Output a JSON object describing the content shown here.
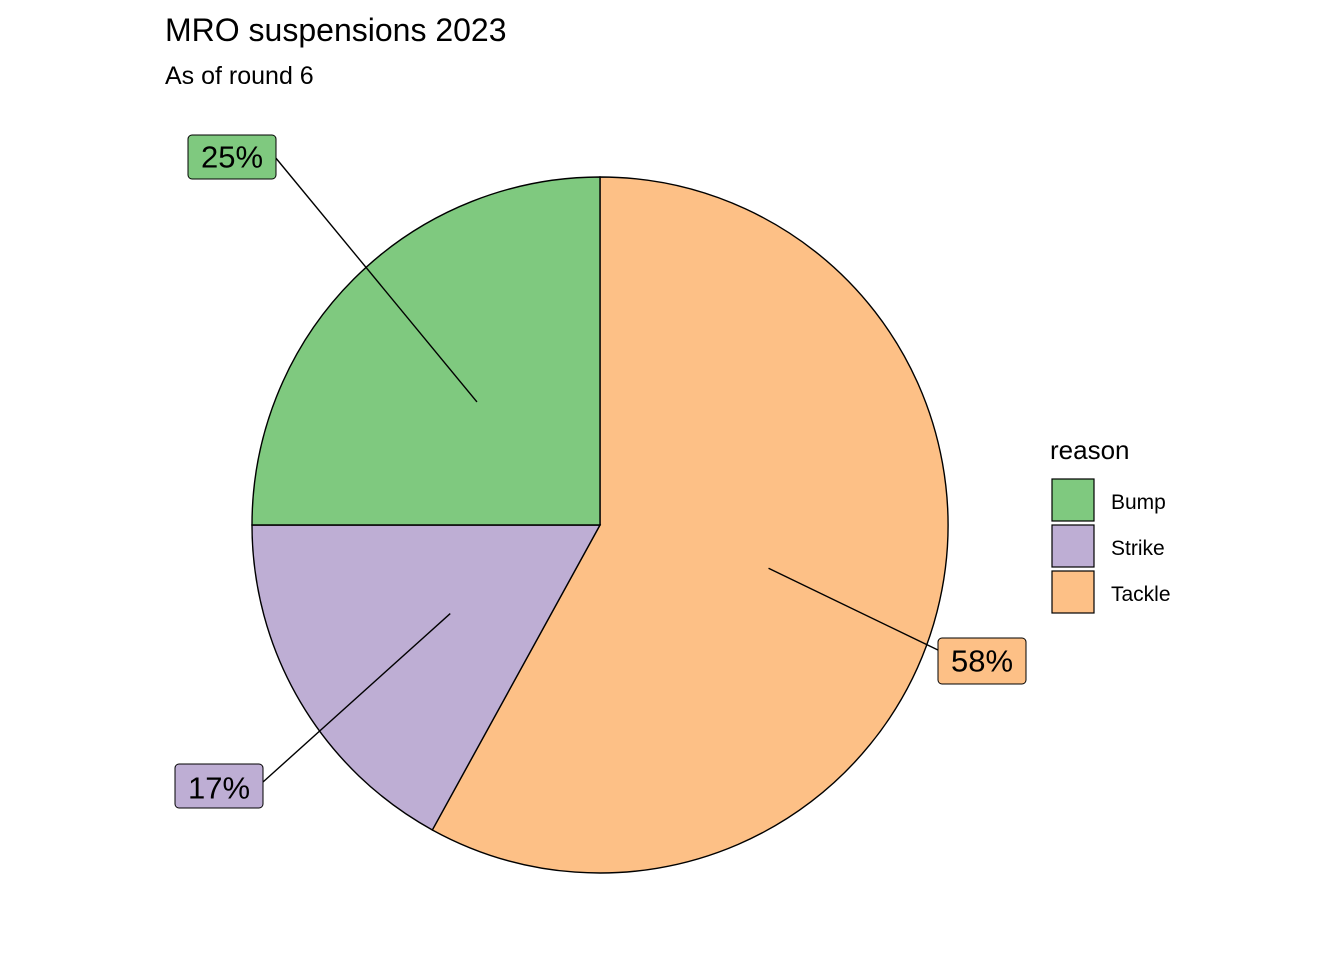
{
  "chart_data": {
    "type": "pie",
    "title": "MRO suspensions 2023",
    "subtitle": "As of round 6",
    "legend": {
      "title": "reason",
      "position": "right"
    },
    "categories": [
      "Bump",
      "Strike",
      "Tackle"
    ],
    "values": [
      25,
      17,
      58
    ],
    "labels": [
      "25%",
      "17%",
      "58%"
    ],
    "colors": [
      "#7fc97f",
      "#beaed4",
      "#fdc086"
    ]
  }
}
